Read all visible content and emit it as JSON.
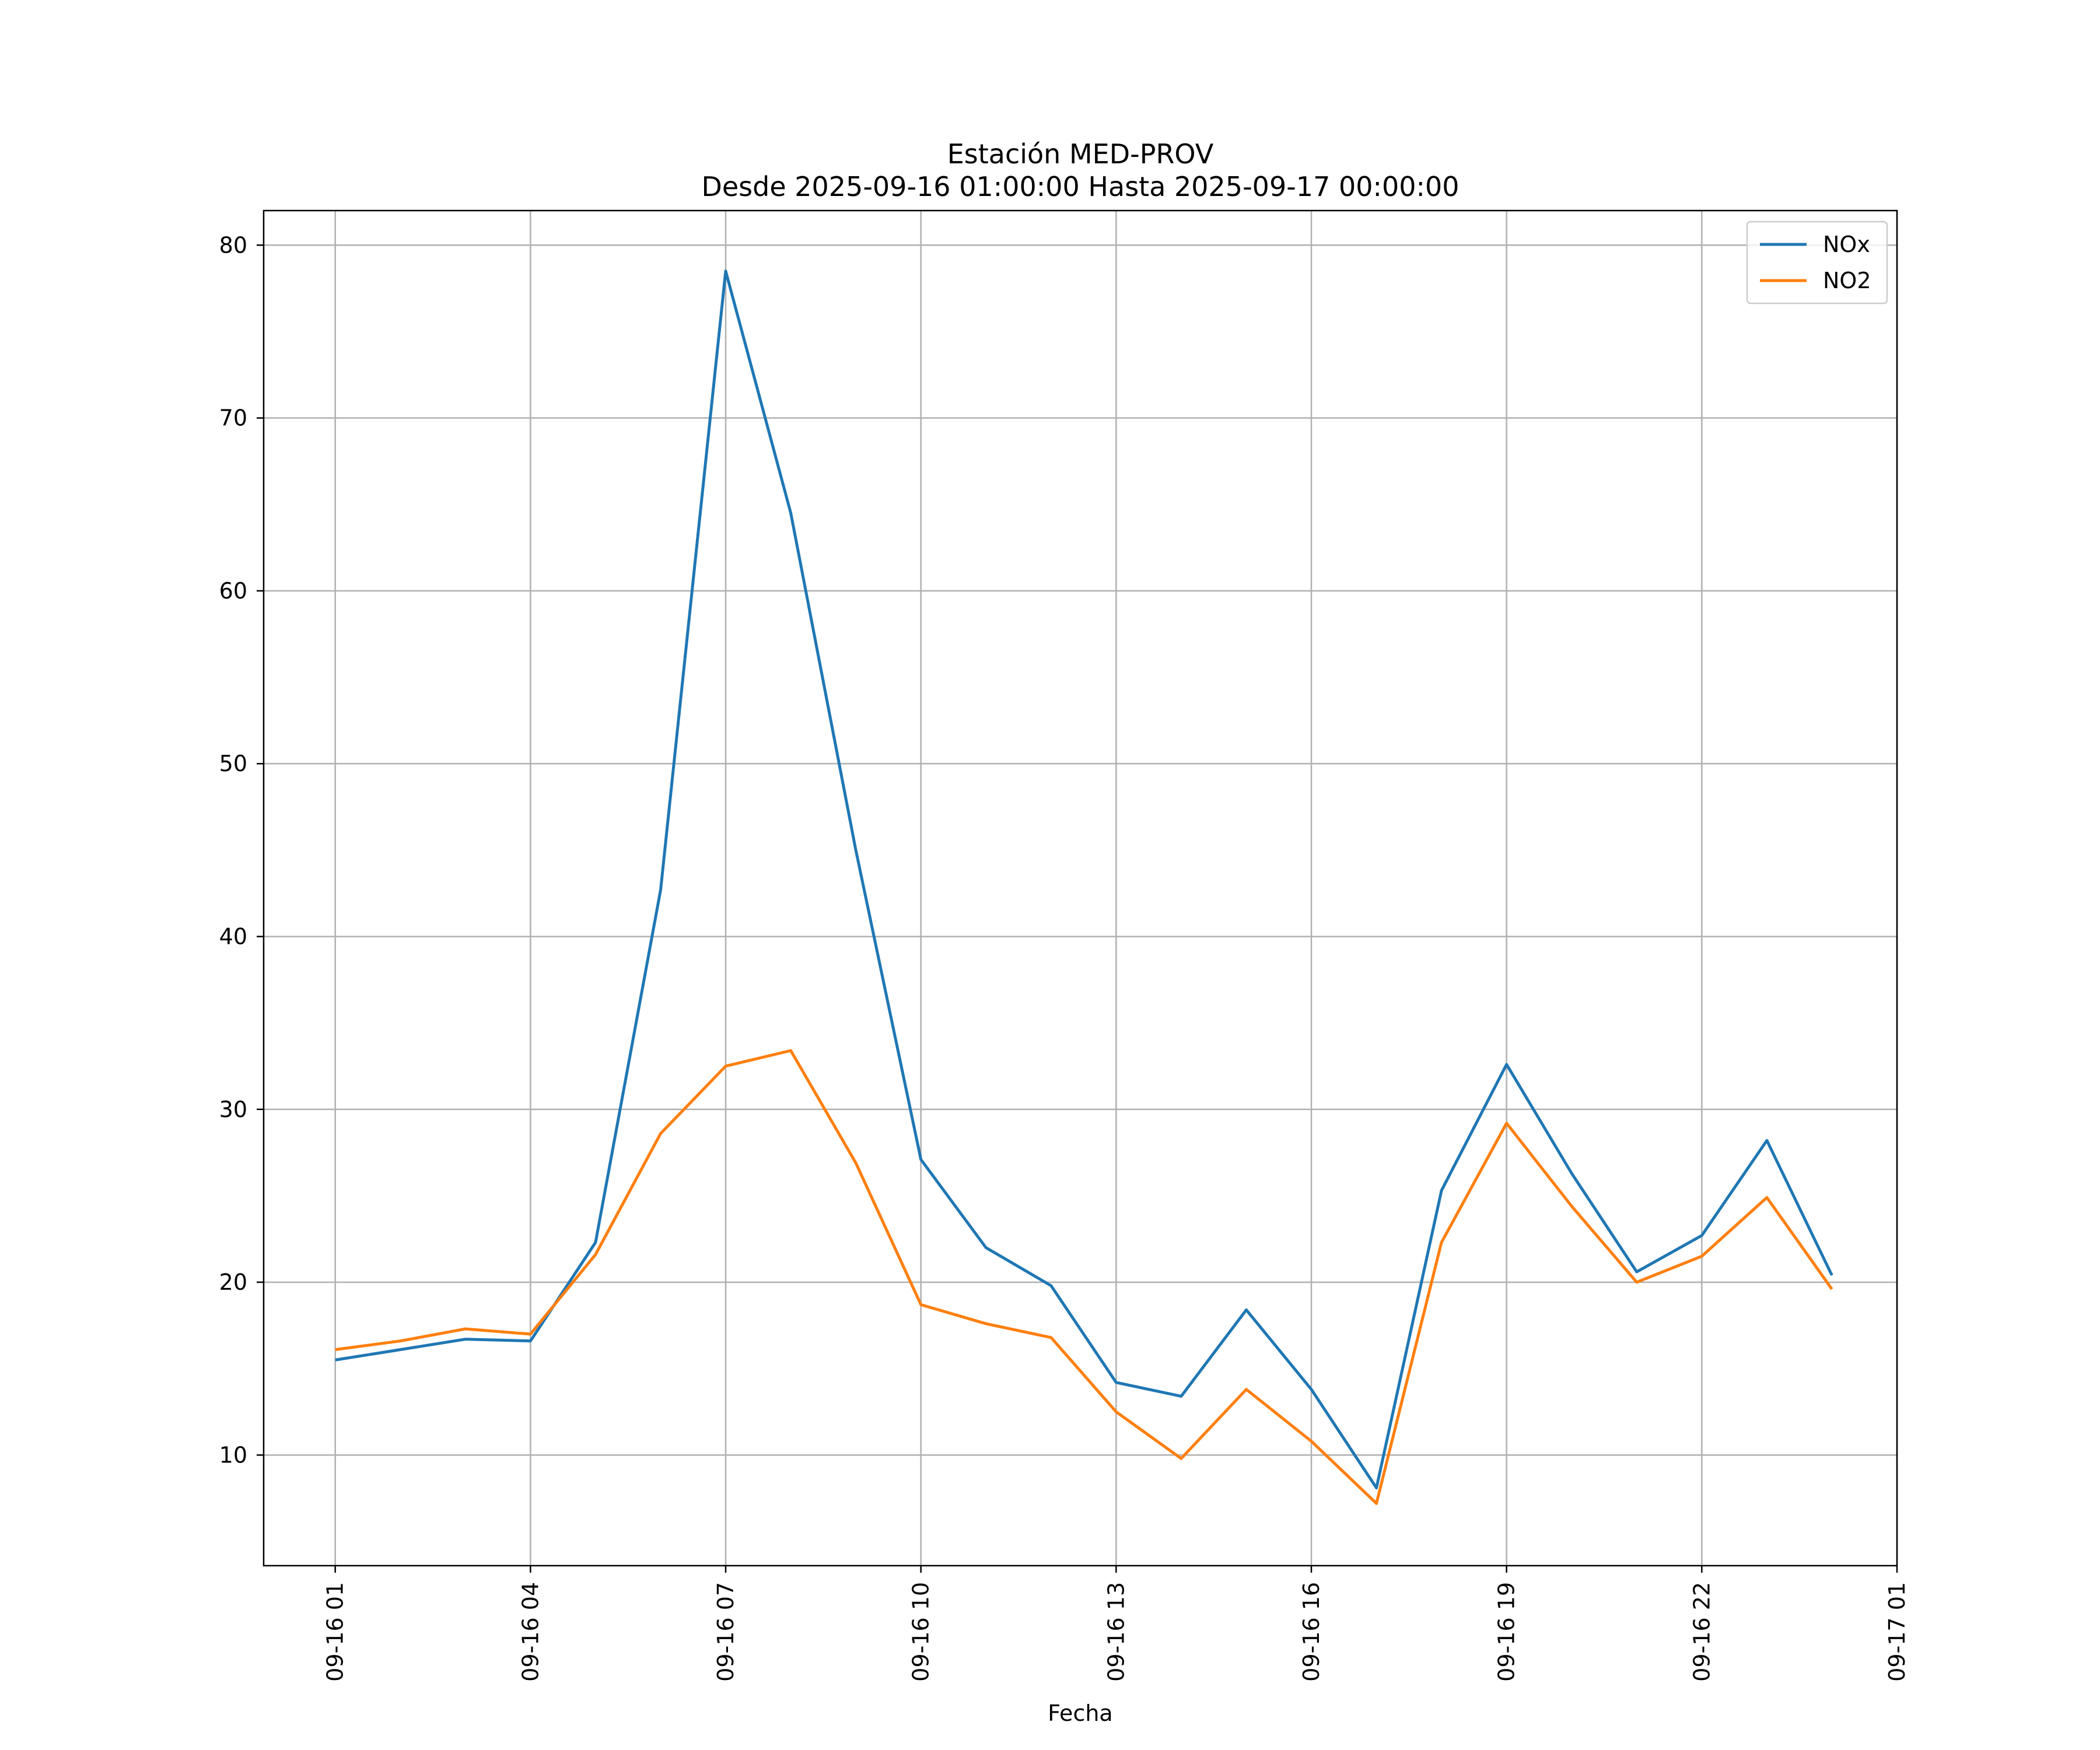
{
  "chart_data": {
    "type": "line",
    "title": "Estación MED-PROV",
    "subtitle": "Desde 2025-09-16 01:00:00 Hasta 2025-09-17 00:00:00",
    "xlabel": "Fecha",
    "ylabel": "",
    "x_hours": [
      1,
      2,
      3,
      4,
      5,
      6,
      7,
      8,
      9,
      10,
      11,
      12,
      13,
      14,
      15,
      16,
      17,
      18,
      19,
      20,
      21,
      22,
      23,
      24
    ],
    "xlim": [
      -0.1,
      25.0
    ],
    "ylim": [
      3.6,
      82.0
    ],
    "x_ticks": [
      {
        "hour": 1,
        "label": "09-16 01"
      },
      {
        "hour": 4,
        "label": "09-16 04"
      },
      {
        "hour": 7,
        "label": "09-16 07"
      },
      {
        "hour": 10,
        "label": "09-16 10"
      },
      {
        "hour": 13,
        "label": "09-16 13"
      },
      {
        "hour": 16,
        "label": "09-16 16"
      },
      {
        "hour": 19,
        "label": "09-16 19"
      },
      {
        "hour": 22,
        "label": "09-16 22"
      },
      {
        "hour": 25,
        "label": "09-17 01"
      }
    ],
    "y_ticks": [
      10,
      20,
      30,
      40,
      50,
      60,
      70,
      80
    ],
    "grid": true,
    "legend_position": "top-right",
    "series": [
      {
        "name": "NOx",
        "color": "#1f77b4",
        "values": [
          15.5,
          16.1,
          16.7,
          16.6,
          22.3,
          42.7,
          78.5,
          64.5,
          45.0,
          27.1,
          22.0,
          19.8,
          14.2,
          13.4,
          18.4,
          13.8,
          8.1,
          25.3,
          32.6,
          26.3,
          20.6,
          22.7,
          28.2,
          20.4
        ]
      },
      {
        "name": "NO2",
        "color": "#ff7f0e",
        "values": [
          16.1,
          16.6,
          17.3,
          17.0,
          21.6,
          28.6,
          32.5,
          33.4,
          26.9,
          18.7,
          17.6,
          16.8,
          12.5,
          9.8,
          13.8,
          10.8,
          7.2,
          22.3,
          29.2,
          24.4,
          20.0,
          21.5,
          24.9,
          19.6
        ]
      }
    ]
  }
}
